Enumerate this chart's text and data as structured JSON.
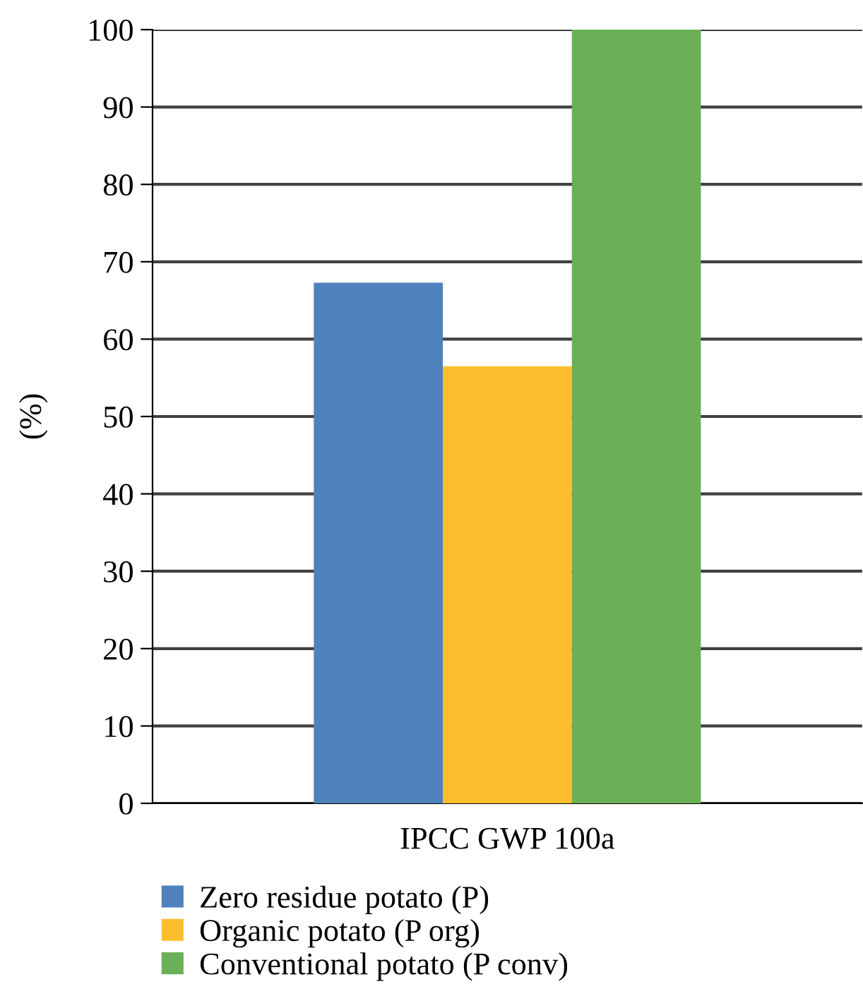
{
  "chart_data": {
    "type": "bar",
    "ylabel": "(%)",
    "categories": [
      "IPCC GWP 100a"
    ],
    "series": [
      {
        "name": "Zero residue potato (P)",
        "color": "#4f81bd",
        "values": [
          67.3
        ]
      },
      {
        "name": "Organic potato (P org)",
        "color": "#fcbe2c",
        "values": [
          56.5
        ]
      },
      {
        "name": "Conventional potato (P conv)",
        "color": "#6ab056",
        "values": [
          100
        ]
      }
    ],
    "ylim": [
      0,
      100
    ],
    "yticks": [
      0,
      10,
      20,
      30,
      40,
      50,
      60,
      70,
      80,
      90,
      100
    ],
    "grid": "y",
    "legend": "bottom left"
  }
}
